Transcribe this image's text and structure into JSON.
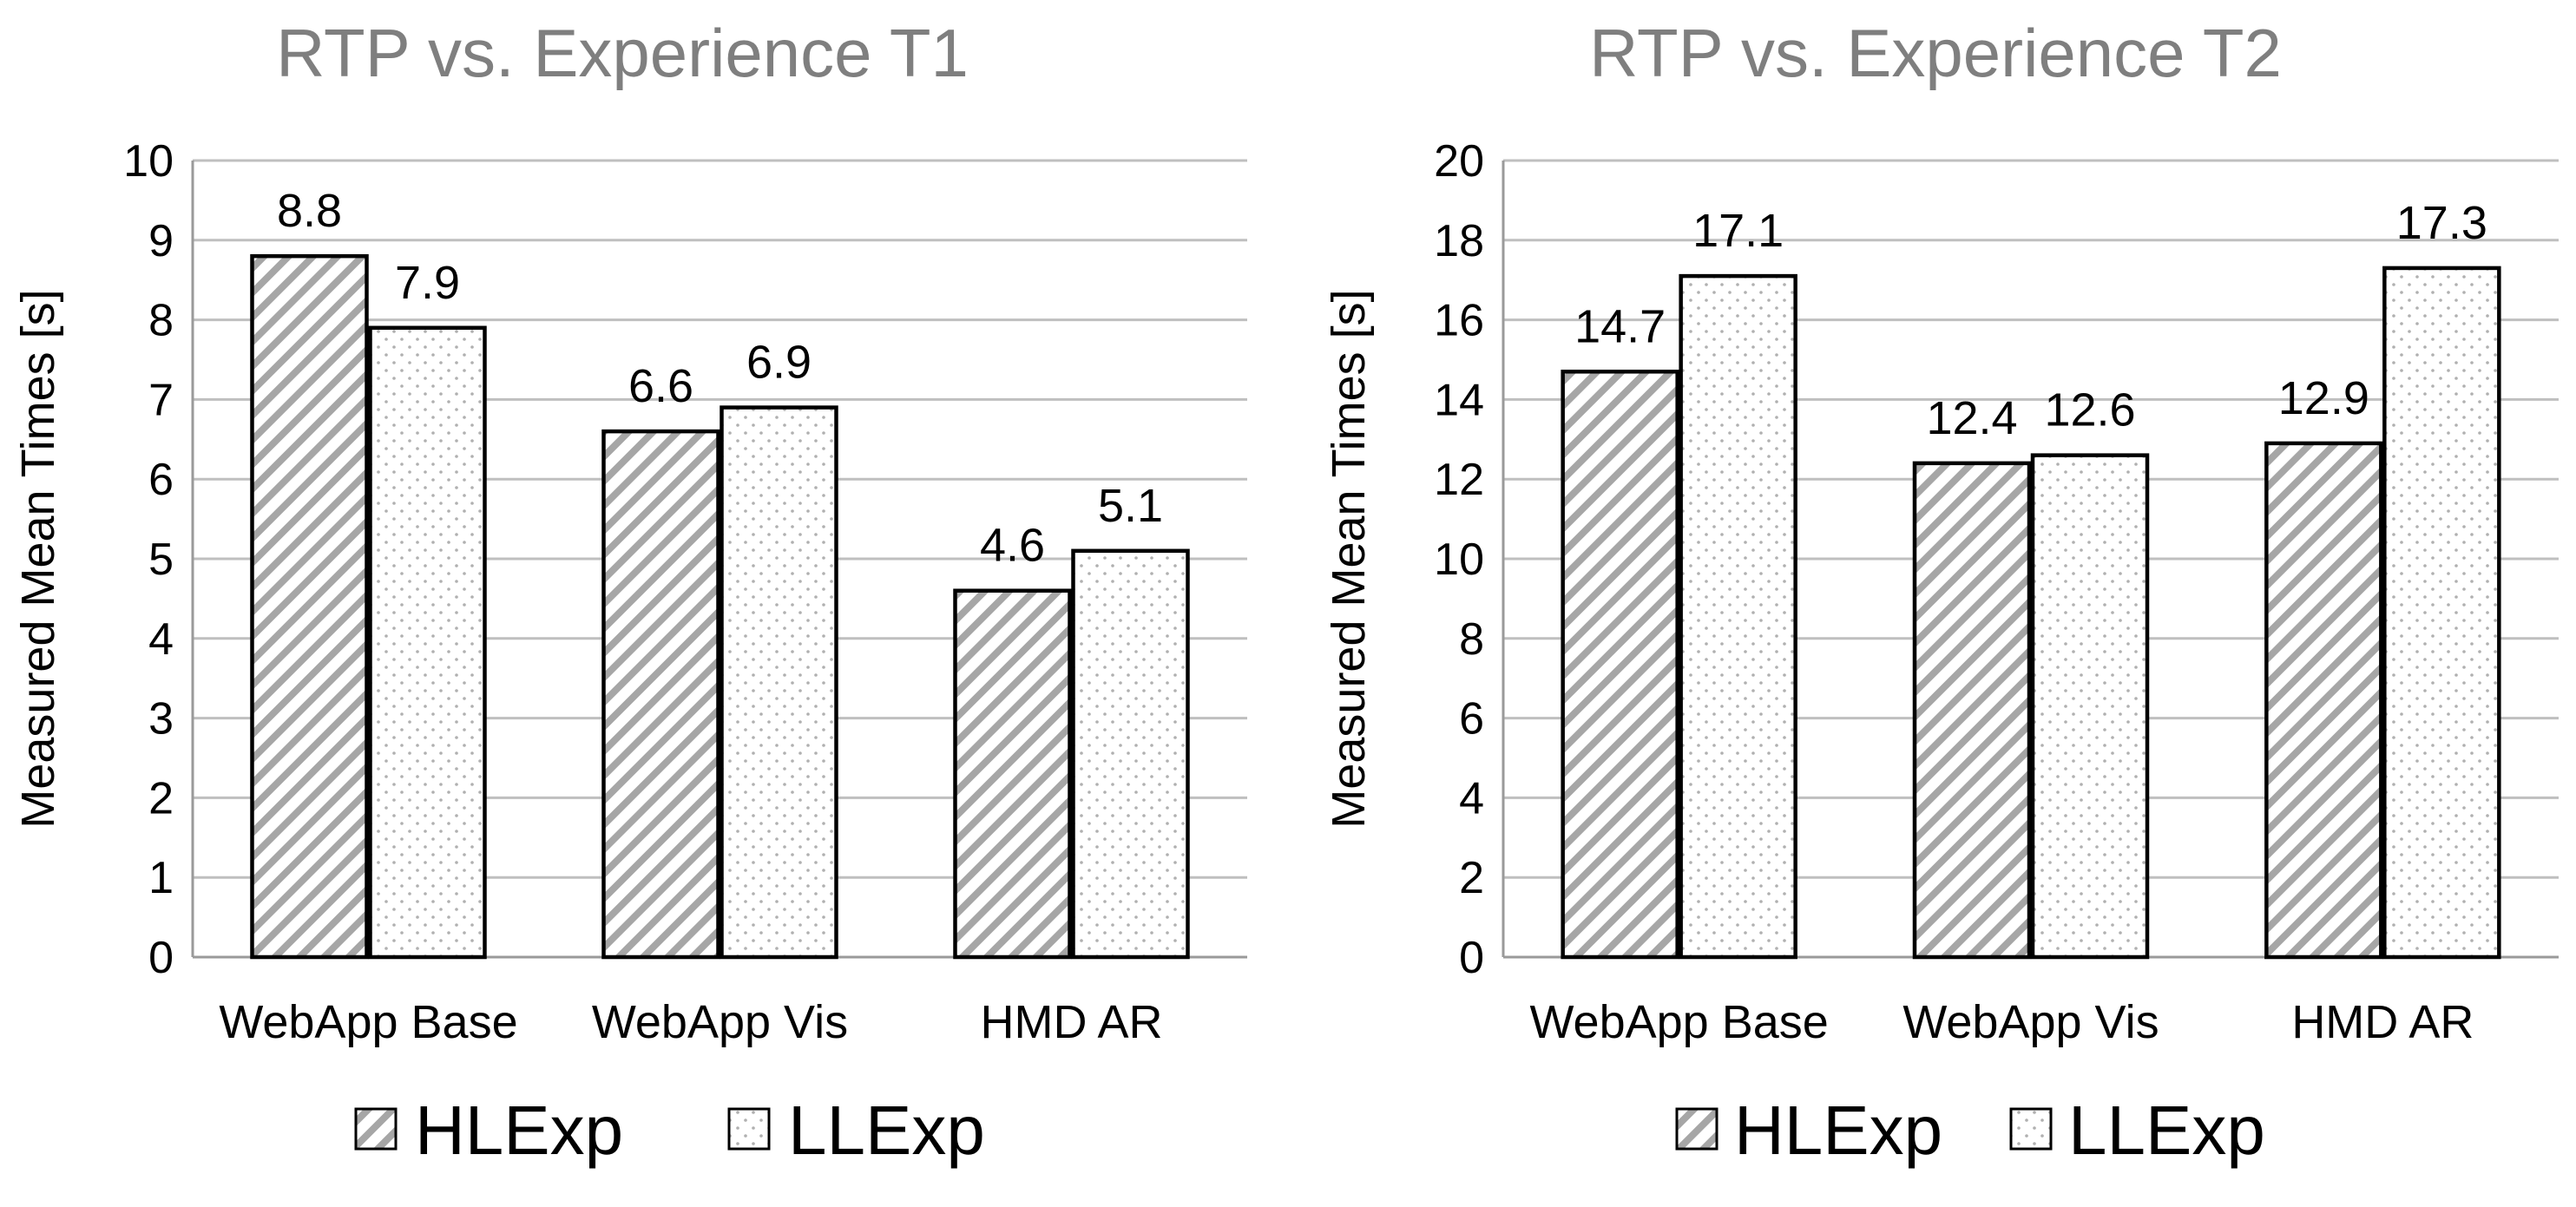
{
  "chart_data": [
    {
      "type": "bar",
      "title": "RTP vs. Experience T1",
      "xlabel": "",
      "ylabel": "Measured Mean Times [s]",
      "categories": [
        "WebApp Base",
        "WebApp Vis",
        "HMD AR"
      ],
      "ylim": [
        0,
        10
      ],
      "ytick_step": 1,
      "grid": true,
      "legend_position": "bottom",
      "series": [
        {
          "name": "HLExp",
          "pattern": "diagonal-hatch",
          "values": [
            8.8,
            6.6,
            4.6
          ]
        },
        {
          "name": "LLExp",
          "pattern": "dots",
          "values": [
            7.9,
            6.9,
            5.1
          ]
        }
      ]
    },
    {
      "type": "bar",
      "title": "RTP vs. Experience T2",
      "xlabel": "",
      "ylabel": "Measured Mean Times [s]",
      "categories": [
        "WebApp Base",
        "WebApp Vis",
        "HMD AR"
      ],
      "ylim": [
        0,
        20
      ],
      "ytick_step": 2,
      "grid": true,
      "legend_position": "bottom",
      "series": [
        {
          "name": "HLExp",
          "pattern": "diagonal-hatch",
          "values": [
            14.7,
            12.4,
            12.9
          ]
        },
        {
          "name": "LLExp",
          "pattern": "dots",
          "values": [
            17.1,
            12.6,
            17.3
          ]
        }
      ]
    }
  ],
  "colors": {
    "title": "#7f7f7f",
    "grid": "#bfbfbf",
    "hatch": "#a6a6a6",
    "dots": "#b0b0b0",
    "bar_outline": "#000000"
  }
}
